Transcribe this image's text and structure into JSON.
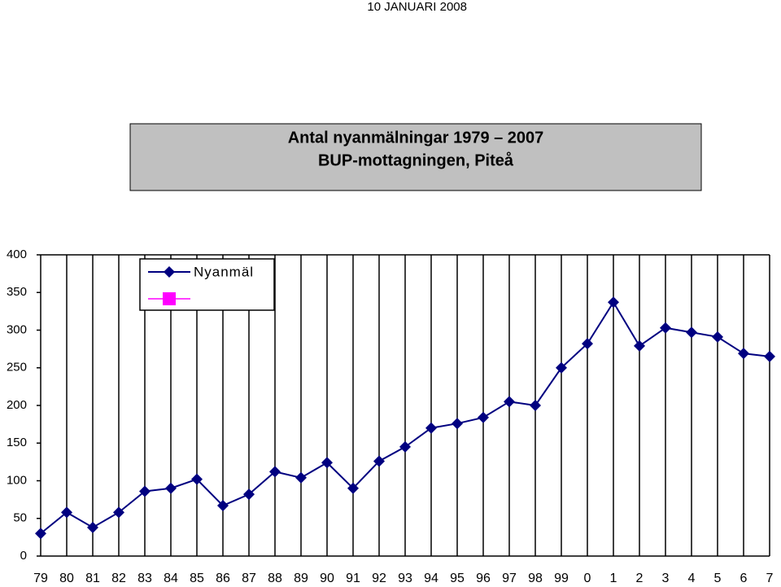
{
  "header": "10 JANUARI 2008",
  "chart_data": {
    "type": "line",
    "title": [
      "Antal nyanmälningar 1979 – 2007",
      "BUP-mottagningen, Piteå"
    ],
    "categories": [
      "79",
      "80",
      "81",
      "82",
      "83",
      "84",
      "85",
      "86",
      "87",
      "88",
      "89",
      "90",
      "91",
      "92",
      "93",
      "94",
      "95",
      "96",
      "97",
      "98",
      "99",
      "0",
      "1",
      "2",
      "3",
      "4",
      "5",
      "6",
      "7"
    ],
    "series": [
      {
        "name": "Nyanmäl",
        "color": "#000080",
        "values": [
          30,
          58,
          38,
          58,
          86,
          90,
          102,
          67,
          82,
          112,
          104,
          124,
          90,
          126,
          145,
          170,
          176,
          184,
          205,
          200,
          250,
          282,
          337,
          279,
          303,
          297,
          291,
          269,
          265
        ]
      }
    ],
    "ylim": [
      0,
      400
    ],
    "yticks": [
      0,
      50,
      100,
      150,
      200,
      250,
      300,
      350,
      400
    ],
    "grid": "vertical",
    "legend": "top-left"
  }
}
